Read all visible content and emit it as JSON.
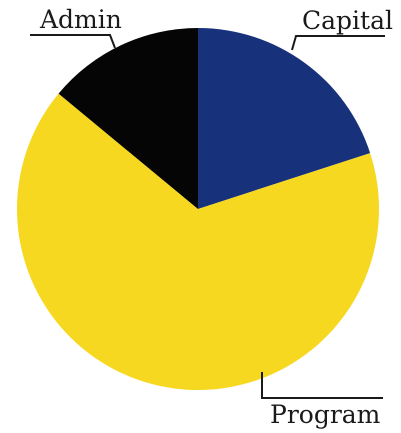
{
  "chart_data": {
    "type": "pie",
    "title": "",
    "slices": [
      {
        "label": "Capital",
        "value": 20,
        "color": "#17317a"
      },
      {
        "label": "Program",
        "value": 66,
        "color": "#f7d821"
      },
      {
        "label": "Admin",
        "value": 14,
        "color": "#050505"
      }
    ],
    "start_angle_deg": 0,
    "direction": "clockwise"
  }
}
